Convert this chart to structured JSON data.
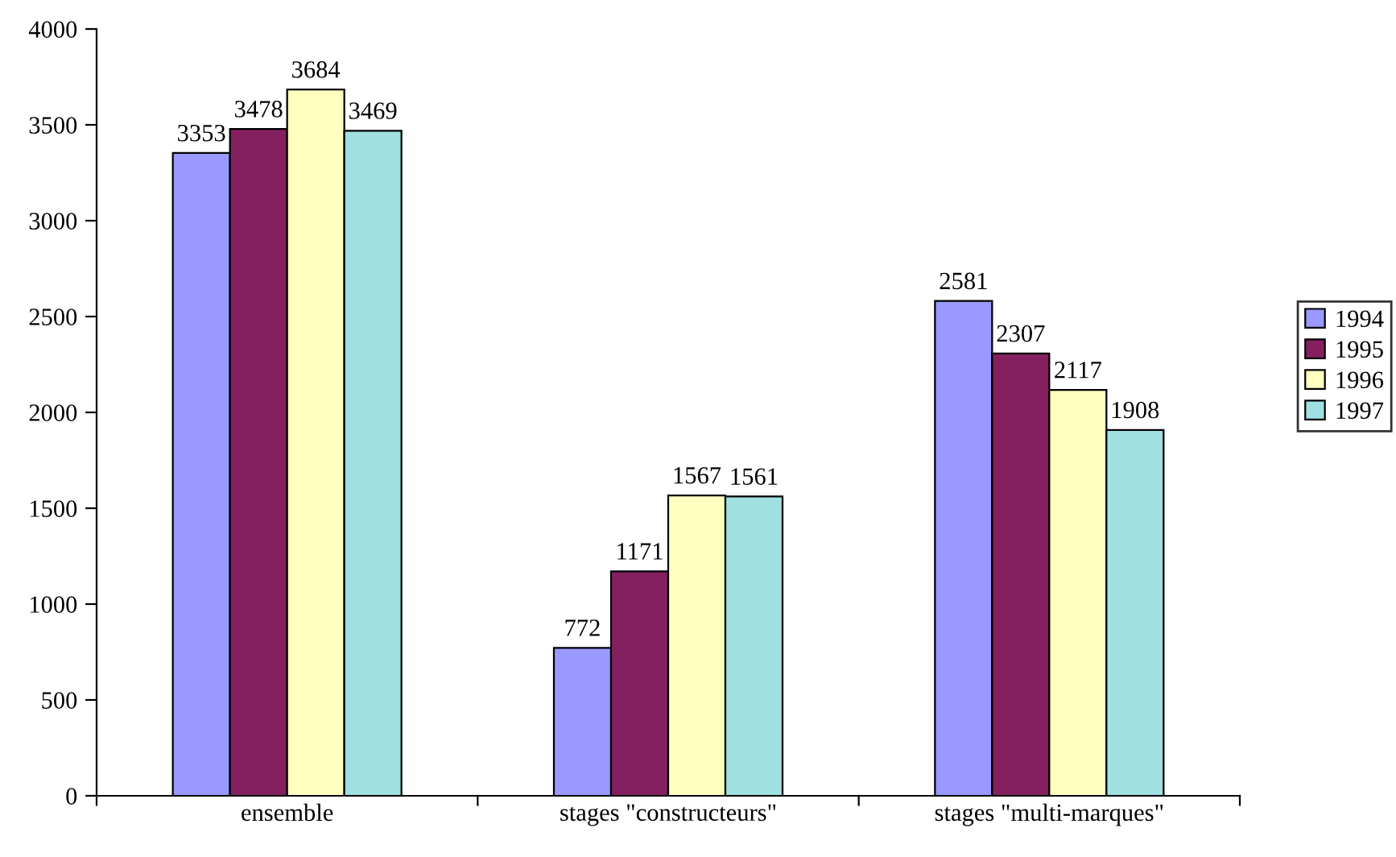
{
  "chart_data": {
    "type": "bar",
    "categories": [
      "ensemble",
      "stages \"constructeurs\"",
      "stages \"multi-marques\""
    ],
    "series": [
      {
        "name": "1994",
        "color": "#9999ff",
        "values": [
          3353,
          772,
          2581
        ]
      },
      {
        "name": "1995",
        "color": "#842060",
        "values": [
          3478,
          1171,
          2307
        ]
      },
      {
        "name": "1996",
        "color": "#ffffc0",
        "values": [
          3684,
          1567,
          2117
        ]
      },
      {
        "name": "1997",
        "color": "#a0e0e0",
        "values": [
          3469,
          1561,
          1908
        ]
      }
    ],
    "ylim": [
      0,
      4000
    ],
    "yticks": [
      0,
      500,
      1000,
      1500,
      2000,
      2500,
      3000,
      3500,
      4000
    ],
    "data_labels": true,
    "grid": false,
    "legend": "right"
  }
}
